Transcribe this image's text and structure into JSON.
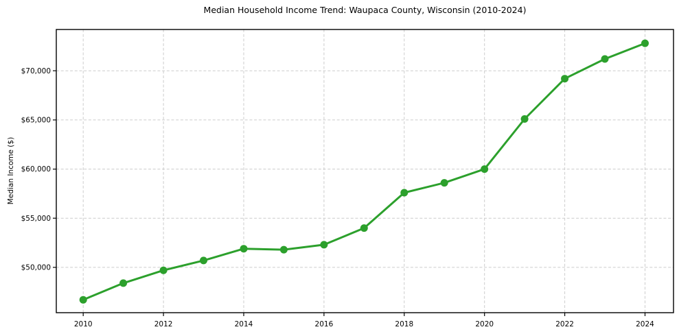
{
  "chart_data": {
    "type": "line",
    "title": "Median Household Income Trend: Waupaca County, Wisconsin (2010-2024)",
    "xlabel": "",
    "ylabel": "Median Income ($)",
    "x": [
      2010,
      2011,
      2012,
      2013,
      2014,
      2015,
      2016,
      2017,
      2018,
      2019,
      2020,
      2021,
      2022,
      2023,
      2024
    ],
    "values": [
      46700,
      48400,
      49700,
      50700,
      51900,
      51800,
      52300,
      54000,
      57600,
      58600,
      60000,
      65100,
      69200,
      71200,
      72800
    ],
    "x_ticks": {
      "values": [
        2010,
        2012,
        2014,
        2016,
        2018,
        2020,
        2022,
        2024
      ],
      "labels": [
        "2010",
        "2012",
        "2014",
        "2016",
        "2018",
        "2020",
        "2022",
        "2024"
      ]
    },
    "y_ticks": {
      "values": [
        50000,
        55000,
        60000,
        65000,
        70000
      ],
      "labels": [
        "$50,000",
        "$55,000",
        "$60,000",
        "$65,000",
        "$70,000"
      ]
    },
    "xlim": [
      2009.33,
      2024.71
    ],
    "ylim": [
      45390,
      74200
    ],
    "grid": {
      "show": true,
      "style": "dashed",
      "color": "#cccccc"
    },
    "line_color": "#2ca02c",
    "marker": "circle",
    "marker_color": "#2ca02c",
    "axes_color": "#000000",
    "background": "#ffffff",
    "legend": "none"
  }
}
